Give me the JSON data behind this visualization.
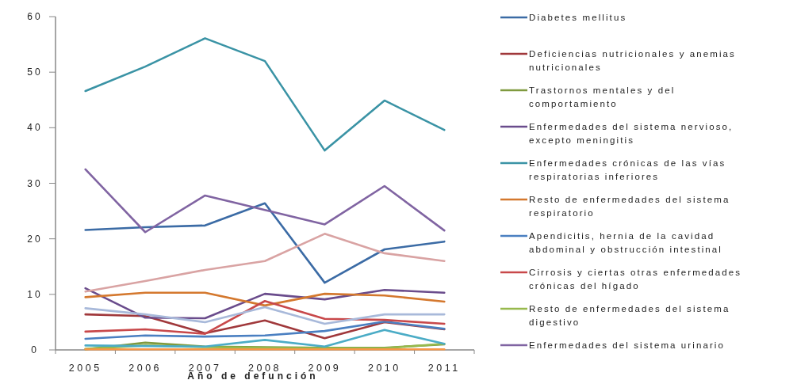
{
  "chart_data": {
    "type": "line",
    "xlabel": "Año de defunción",
    "categories": [
      "2005",
      "2006",
      "2007",
      "2008",
      "2009",
      "2010",
      "2011"
    ],
    "ylim": [
      0,
      60
    ],
    "yticks": [
      0,
      10,
      20,
      30,
      40,
      50,
      60
    ],
    "grid": false,
    "legend": "right",
    "marker": "none",
    "series": [
      {
        "name": "Diabetes mellitus",
        "color": "#3b6ba5",
        "values": [
          21.6,
          22.1,
          22.4,
          26.4,
          12.1,
          18.1,
          19.5
        ]
      },
      {
        "name": "Deficiencias nutricionales y anemias nutricionales",
        "color": "#a0383b",
        "values": [
          6.4,
          6.1,
          3.0,
          5.3,
          2.1,
          5.0,
          3.7
        ]
      },
      {
        "name": "Trastornos mentales y del comportamiento",
        "color": "#7f9a3f",
        "values": [
          0.1,
          1.3,
          0.6,
          0.5,
          0.4,
          0.4,
          1.0
        ]
      },
      {
        "name": "Enfermedades del sistema nervioso, excepto meningitis",
        "color": "#6a4c8c",
        "values": [
          11.1,
          5.8,
          5.7,
          10.1,
          9.1,
          10.8,
          10.3
        ]
      },
      {
        "name": "Enfermedades crónicas de las vías respiratorias inferiores",
        "color": "#3a93a5",
        "values": [
          46.6,
          51.0,
          56.1,
          52.0,
          35.9,
          44.9,
          39.6
        ]
      },
      {
        "name": "Resto de enfermedades del sistema respiratorio",
        "color": "#d4782e",
        "values": [
          9.5,
          10.3,
          10.3,
          8.0,
          10.1,
          9.8,
          8.7
        ]
      },
      {
        "name": "Apendicitis, hernia de la cavidad abdominal y obstrucción intestinal",
        "color": "#4a7fc1",
        "values": [
          2.0,
          2.6,
          2.4,
          2.6,
          3.4,
          5.1,
          3.8
        ]
      },
      {
        "name": "Cirrosis y ciertas otras enfermedades crónicas del hígado",
        "color": "#c8484a",
        "values": [
          3.3,
          3.7,
          2.9,
          8.8,
          5.6,
          5.4,
          4.7
        ]
      },
      {
        "name": "Resto de enfermedades del sistema digestivo",
        "color": "#97b94d",
        "values": [
          0.2,
          0.8,
          0.5,
          0.4,
          0.3,
          0.3,
          1.1
        ]
      },
      {
        "name": "Enfermedades del sistema urinario",
        "color": "#8064a2",
        "values": [
          32.5,
          21.2,
          27.8,
          25.2,
          22.6,
          29.5,
          21.5
        ]
      },
      {
        "color": "#d9a3a3",
        "values": [
          10.5,
          12.4,
          14.4,
          16.0,
          20.9,
          17.4,
          16.0
        ]
      },
      {
        "color": "#a8b9da",
        "values": [
          7.5,
          6.4,
          5.0,
          7.7,
          4.7,
          6.4,
          6.4
        ]
      },
      {
        "color": "#4bacc6",
        "values": [
          0.8,
          0.7,
          0.6,
          1.8,
          0.6,
          3.6,
          1.1
        ]
      },
      {
        "color": "#f79646",
        "values": [
          0.1,
          0.1,
          0.1,
          0.1,
          0.1,
          0.1,
          0.1
        ]
      }
    ]
  }
}
